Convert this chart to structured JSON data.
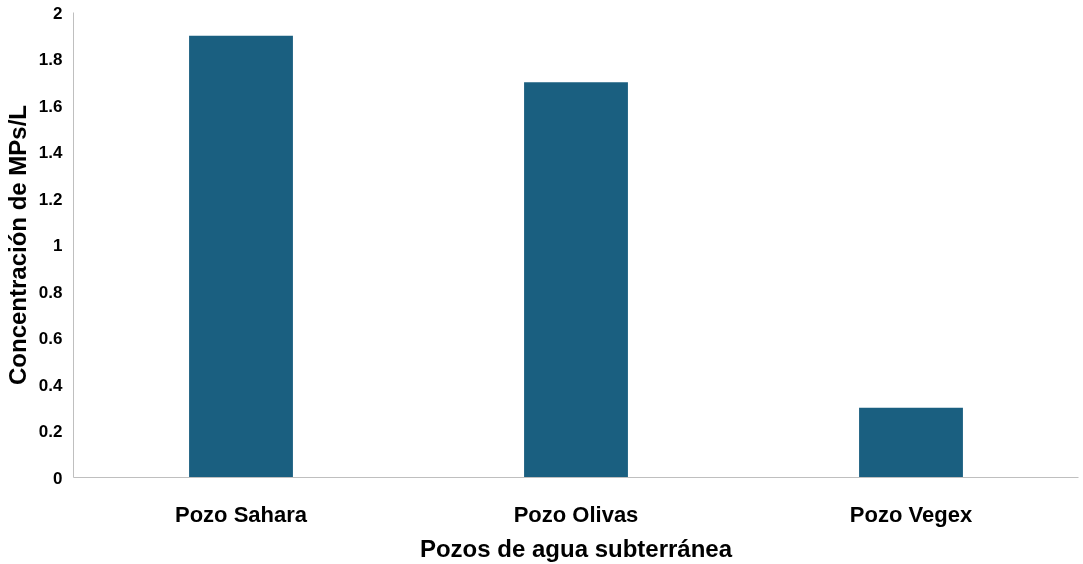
{
  "chart_data": {
    "type": "bar",
    "xlabel": "Pozos de agua subterránea",
    "ylabel": "Concentración de MPs/L",
    "categories": [
      "Pozo Sahara",
      "Pozo Olivas",
      "Pozo Vegex"
    ],
    "values": [
      1.9,
      1.7,
      0.3
    ],
    "color": "#1a5f80",
    "ylim": [
      0,
      2
    ],
    "yticks": [
      0,
      {
        "value": 0.2,
        "label": "0.2"
      },
      {
        "value": 0.4,
        "label": "0.4"
      },
      {
        "value": 0.6,
        "label": "0.6"
      },
      {
        "value": 0.8,
        "label": "0.8"
      },
      1,
      {
        "value": 1.2,
        "label": "1.2"
      },
      {
        "value": 1.4,
        "label": "1.4"
      },
      {
        "value": 1.6,
        "label": "1.6"
      },
      {
        "value": 1.8,
        "label": "1.8"
      },
      2
    ],
    "grid": false
  }
}
